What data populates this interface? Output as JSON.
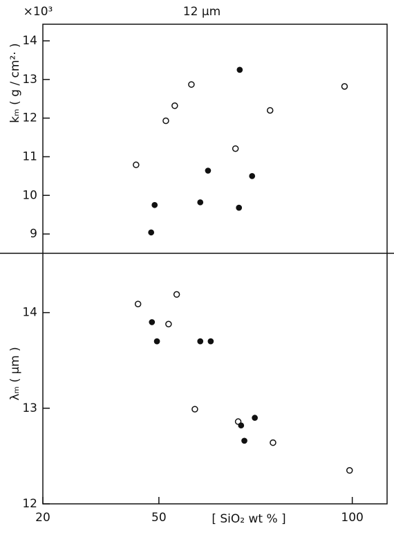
{
  "chart_data": [
    {
      "type": "scatter",
      "title": "12 μm",
      "y_multiplier": "×10³",
      "ylabel": "kₘ ( g / cm²· )",
      "xlim": [
        20,
        109
      ],
      "ylim": [
        8.5,
        14.43
      ],
      "yticks": [
        9,
        10,
        11,
        12,
        13,
        14
      ],
      "series": [
        {
          "marker": "open",
          "color": "#111",
          "x": [
            44.1,
            51.8,
            54.1,
            58.4,
            69.8,
            78.75,
            98.0
          ],
          "values": [
            10.79,
            11.93,
            12.32,
            12.87,
            11.21,
            12.2,
            12.82
          ]
        },
        {
          "marker": "filled",
          "color": "#111",
          "x": [
            48.0,
            48.9,
            60.7,
            62.7,
            70.9,
            70.7,
            74.1
          ],
          "values": [
            9.04,
            9.75,
            9.82,
            10.64,
            13.25,
            9.68,
            10.5
          ]
        }
      ]
    },
    {
      "type": "scatter",
      "ylabel": "λₘ ( μm )",
      "xlabel": "[ SiO₂ wt % ]",
      "xlim": [
        20,
        109
      ],
      "ylim": [
        12,
        14.62
      ],
      "yticks": [
        12,
        13,
        14
      ],
      "xticks": [
        20,
        50,
        100
      ],
      "series": [
        {
          "marker": "open",
          "color": "#111",
          "x": [
            44.6,
            54.6,
            52.5,
            59.3,
            70.5,
            79.5,
            99.3
          ],
          "values": [
            14.09,
            14.19,
            13.88,
            12.99,
            12.86,
            12.64,
            12.35
          ]
        },
        {
          "marker": "filled",
          "color": "#111",
          "x": [
            48.2,
            49.5,
            60.7,
            63.4,
            71.25,
            74.8,
            72.1
          ],
          "values": [
            13.9,
            13.7,
            13.7,
            13.7,
            12.82,
            12.9,
            12.66
          ]
        }
      ]
    }
  ]
}
